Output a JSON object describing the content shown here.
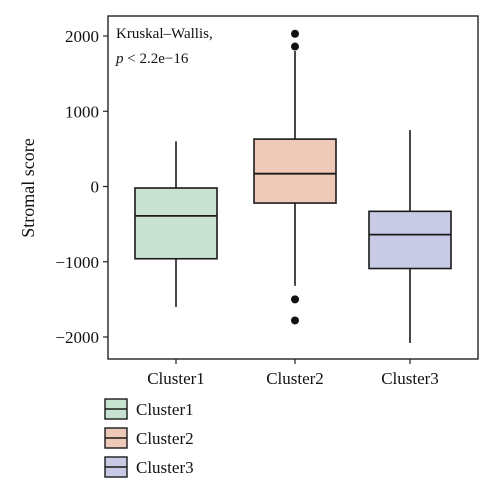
{
  "chart_data": {
    "type": "boxplot",
    "title": "",
    "xlabel": "",
    "ylabel": "Stromal score",
    "ylim": [
      -2250,
      2250
    ],
    "yticks": [
      2000,
      1000,
      0,
      -1000,
      -2000
    ],
    "ytick_labels": [
      "2000",
      "1000",
      "0",
      "−1000",
      "−2000"
    ],
    "grid": false,
    "legend_position": "bottom-left",
    "annotation": {
      "line1": "Kruskal–Wallis,",
      "line2_p": "p",
      "line2_rest": " < 2.2e−16"
    },
    "categories": [
      "Cluster1",
      "Cluster2",
      "Cluster3"
    ],
    "series": [
      {
        "name": "Cluster1",
        "color": "#c9e3d3",
        "whisker_low": -1600,
        "q1": -960,
        "median": -390,
        "q3": -20,
        "whisker_high": 600,
        "outliers": []
      },
      {
        "name": "Cluster2",
        "color": "#efc9b7",
        "whisker_low": -1320,
        "q1": -220,
        "median": 170,
        "q3": 630,
        "whisker_high": 1800,
        "outliers": [
          2030,
          1860,
          -1500,
          -1780
        ]
      },
      {
        "name": "Cluster3",
        "color": "#c9cbe6",
        "whisker_low": -2080,
        "q1": -1090,
        "median": -640,
        "q3": -330,
        "whisker_high": 750,
        "outliers": []
      }
    ]
  }
}
